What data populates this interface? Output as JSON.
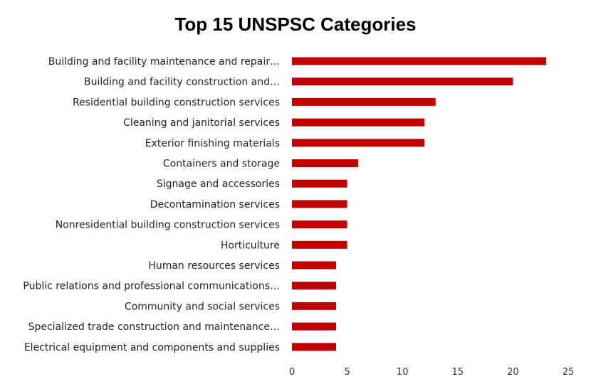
{
  "chart_data": {
    "type": "bar",
    "orientation": "horizontal",
    "title": "Top 15 UNSPSC Categories",
    "xlabel": "",
    "ylabel": "",
    "xlim": [
      0,
      25
    ],
    "xticks": [
      0,
      5,
      10,
      15,
      20,
      25
    ],
    "grid": false,
    "bar_color": "#C00000",
    "categories": [
      "Building and facility maintenance and repair…",
      "Building and facility construction and…",
      "Residential building construction services",
      "Cleaning and janitorial services",
      "Exterior finishing materials",
      "Containers and storage",
      "Signage and accessories",
      "Decontamination services",
      "Nonresidential building construction services",
      "Horticulture",
      "Human resources services",
      "Public relations and professional communications…",
      "Community and social services",
      "Specialized trade construction and maintenance…",
      "Electrical equipment and components and supplies"
    ],
    "values": [
      23,
      20,
      13,
      12,
      12,
      6,
      5,
      5,
      5,
      5,
      4,
      4,
      4,
      4,
      4
    ]
  }
}
